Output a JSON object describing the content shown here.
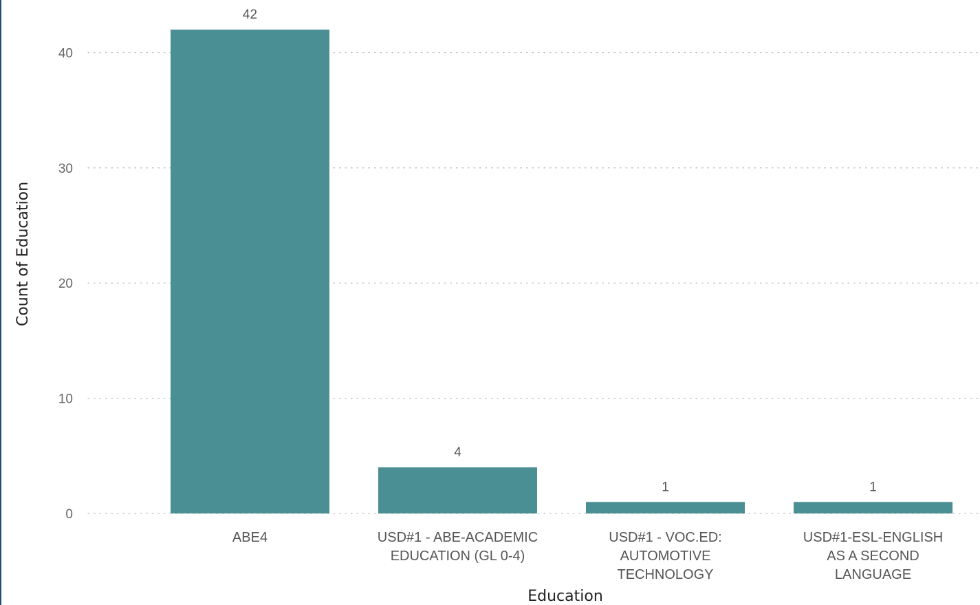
{
  "chart_data": {
    "type": "bar",
    "categories": [
      "ABE4",
      "USD#1 - ABE-ACADEMIC EDUCATION (GL 0-4)",
      "USD#1 - VOC.ED: AUTOMOTIVE TECHNOLOGY",
      "USD#1-ESL-ENGLISH AS A SECOND LANGUAGE"
    ],
    "category_lines": [
      [
        "ABE4"
      ],
      [
        "USD#1 - ABE-ACADEMIC",
        "EDUCATION (GL 0-4)"
      ],
      [
        "USD#1 - VOC.ED:",
        "AUTOMOTIVE",
        "TECHNOLOGY"
      ],
      [
        "USD#1-ESL-ENGLISH",
        "AS A SECOND",
        "LANGUAGE"
      ]
    ],
    "values": [
      42,
      4,
      1,
      1
    ],
    "data_labels": [
      "42",
      "4",
      "1",
      "1"
    ],
    "title": "",
    "xlabel": "Education",
    "ylabel": "Count of Education",
    "ylim": [
      0,
      42
    ],
    "yticks": [
      0,
      10,
      20,
      30,
      40
    ],
    "ytick_labels": [
      "0",
      "10",
      "20",
      "30",
      "40"
    ],
    "grid": true,
    "grid_style": "dotted",
    "legend": "none",
    "bar_color": "#4a8f93"
  }
}
